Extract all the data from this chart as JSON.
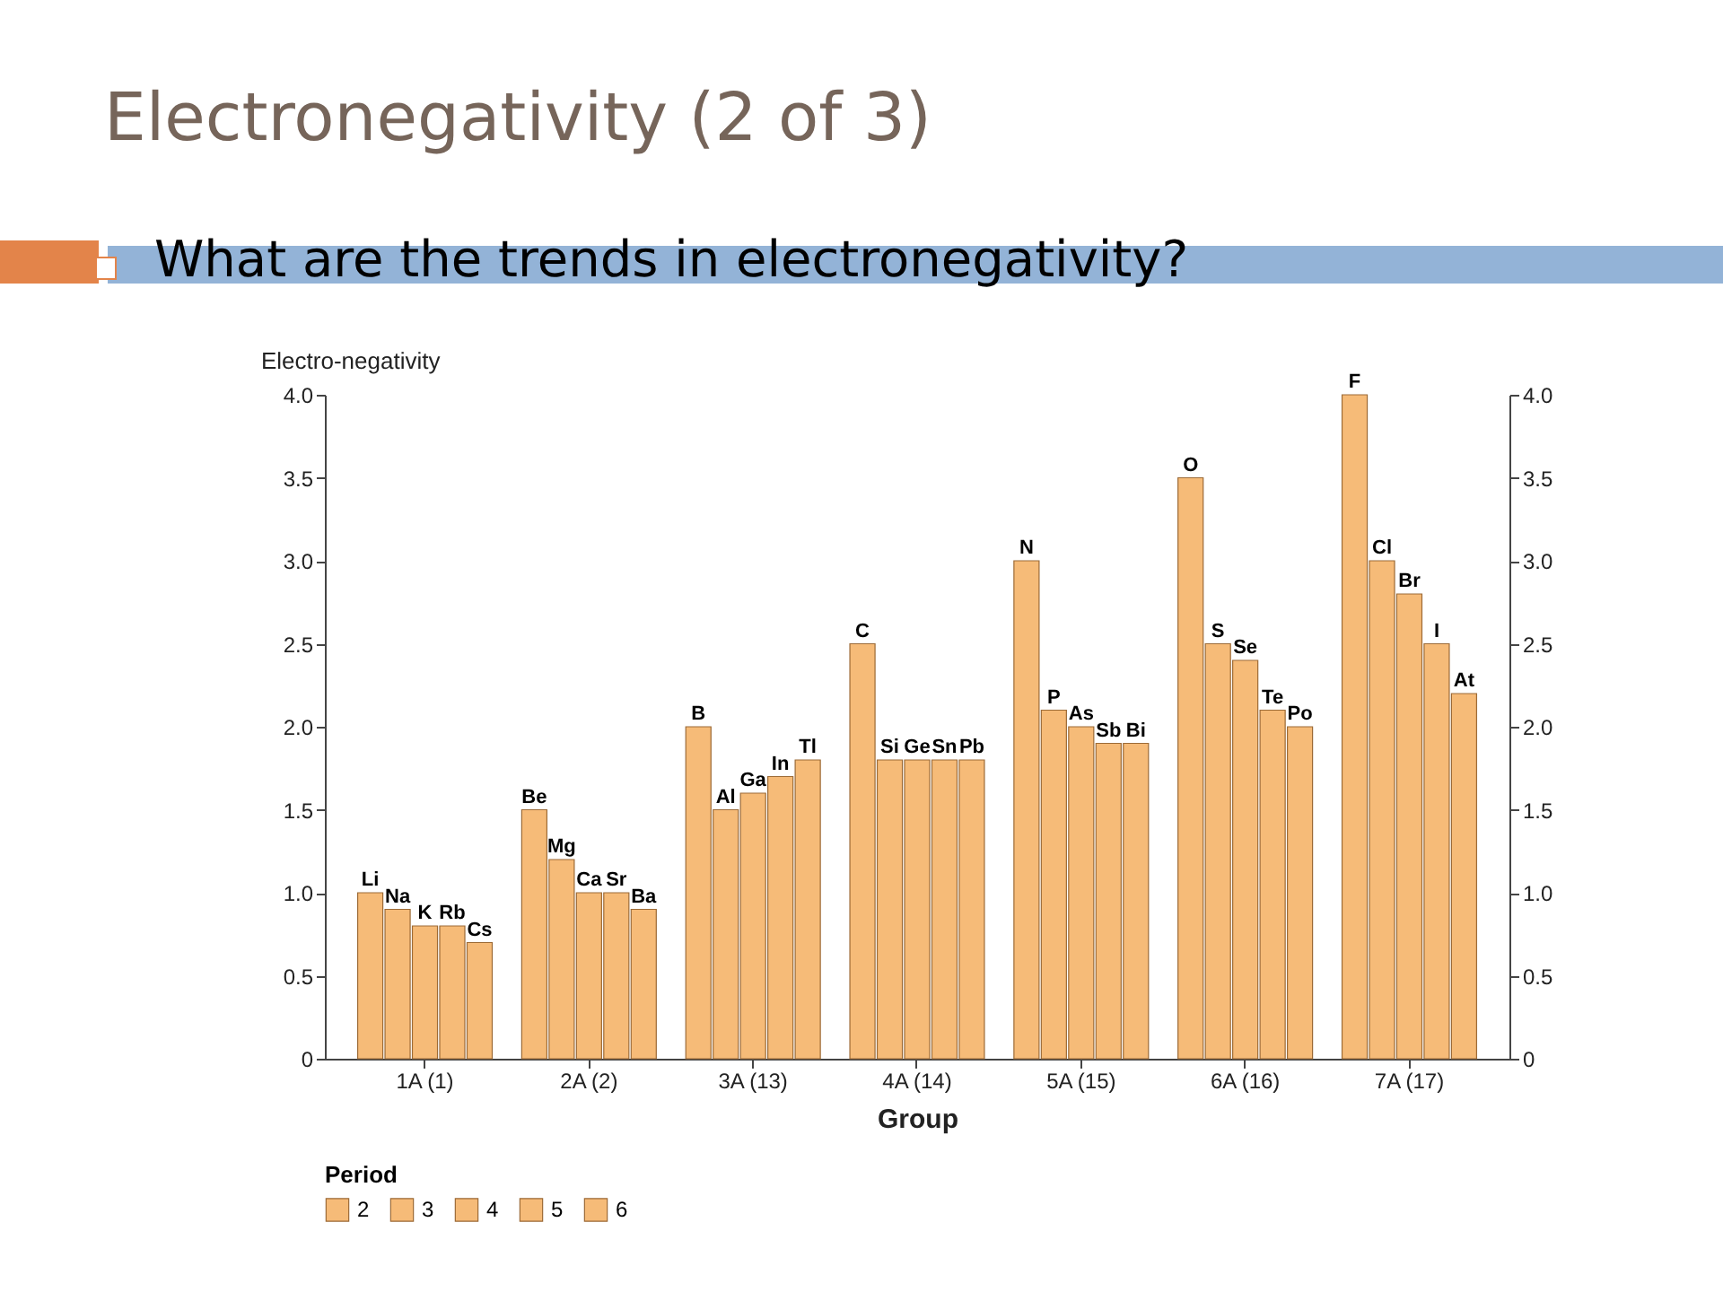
{
  "chart_data": {
    "type": "bar",
    "title": "Electronegativity (2 of 3)",
    "subtitle": "What are the trends in electronegativity?",
    "xlabel": "Group",
    "ylabel": "Electro-negativity",
    "legend_title": "Period",
    "legend": "bottom",
    "categories": [
      "1A (1)",
      "2A (2)",
      "3A (13)",
      "4A (14)",
      "5A (15)",
      "6A (16)",
      "7A (17)"
    ],
    "series": [
      {
        "name": "2",
        "color": "#f6bb78",
        "values": [
          1.0,
          1.5,
          2.0,
          2.5,
          3.0,
          3.5,
          4.0
        ],
        "value_labels": [
          "Li",
          "Be",
          "B",
          "C",
          "N",
          "O",
          "F"
        ]
      },
      {
        "name": "3",
        "color": "#f6bb78",
        "values": [
          0.9,
          1.2,
          1.5,
          1.8,
          2.1,
          2.5,
          3.0
        ],
        "value_labels": [
          "Na",
          "Mg",
          "Al",
          "Si",
          "P",
          "S",
          "Cl"
        ]
      },
      {
        "name": "4",
        "color": "#f6bb78",
        "values": [
          0.8,
          1.0,
          1.6,
          1.8,
          2.0,
          2.4,
          2.8
        ],
        "value_labels": [
          "K",
          "Ca",
          "Ga",
          "Ge",
          "As",
          "Se",
          "Br"
        ]
      },
      {
        "name": "5",
        "color": "#f6bb78",
        "values": [
          0.8,
          1.0,
          1.7,
          1.8,
          1.9,
          2.1,
          2.5
        ],
        "value_labels": [
          "Rb",
          "Sr",
          "In",
          "Sn",
          "Sb",
          "Te",
          "I"
        ]
      },
      {
        "name": "6",
        "color": "#f6bb78",
        "values": [
          0.7,
          0.9,
          1.8,
          1.8,
          1.9,
          2.0,
          2.2
        ],
        "value_labels": [
          "Cs",
          "Ba",
          "Tl",
          "Pb",
          "Bi",
          "Po",
          "At"
        ]
      }
    ],
    "ylim": [
      0,
      4
    ],
    "yticks": [
      0,
      0.5,
      {
        "value": 1,
        "label": "1.0"
      },
      1.5,
      {
        "value": 2,
        "label": "2.0"
      },
      2.5,
      {
        "value": 3,
        "label": "3.0"
      },
      3.5,
      {
        "value": 4,
        "label": "4.0"
      }
    ],
    "y2lim": [
      0,
      4
    ],
    "y2ticks": [
      0,
      0.5,
      {
        "value": 1,
        "label": "1.0"
      },
      1.5,
      {
        "value": 2,
        "label": "2.0"
      },
      2.5,
      {
        "value": 3,
        "label": "3.0"
      },
      3.5,
      {
        "value": 4,
        "label": "4.0"
      }
    ]
  }
}
